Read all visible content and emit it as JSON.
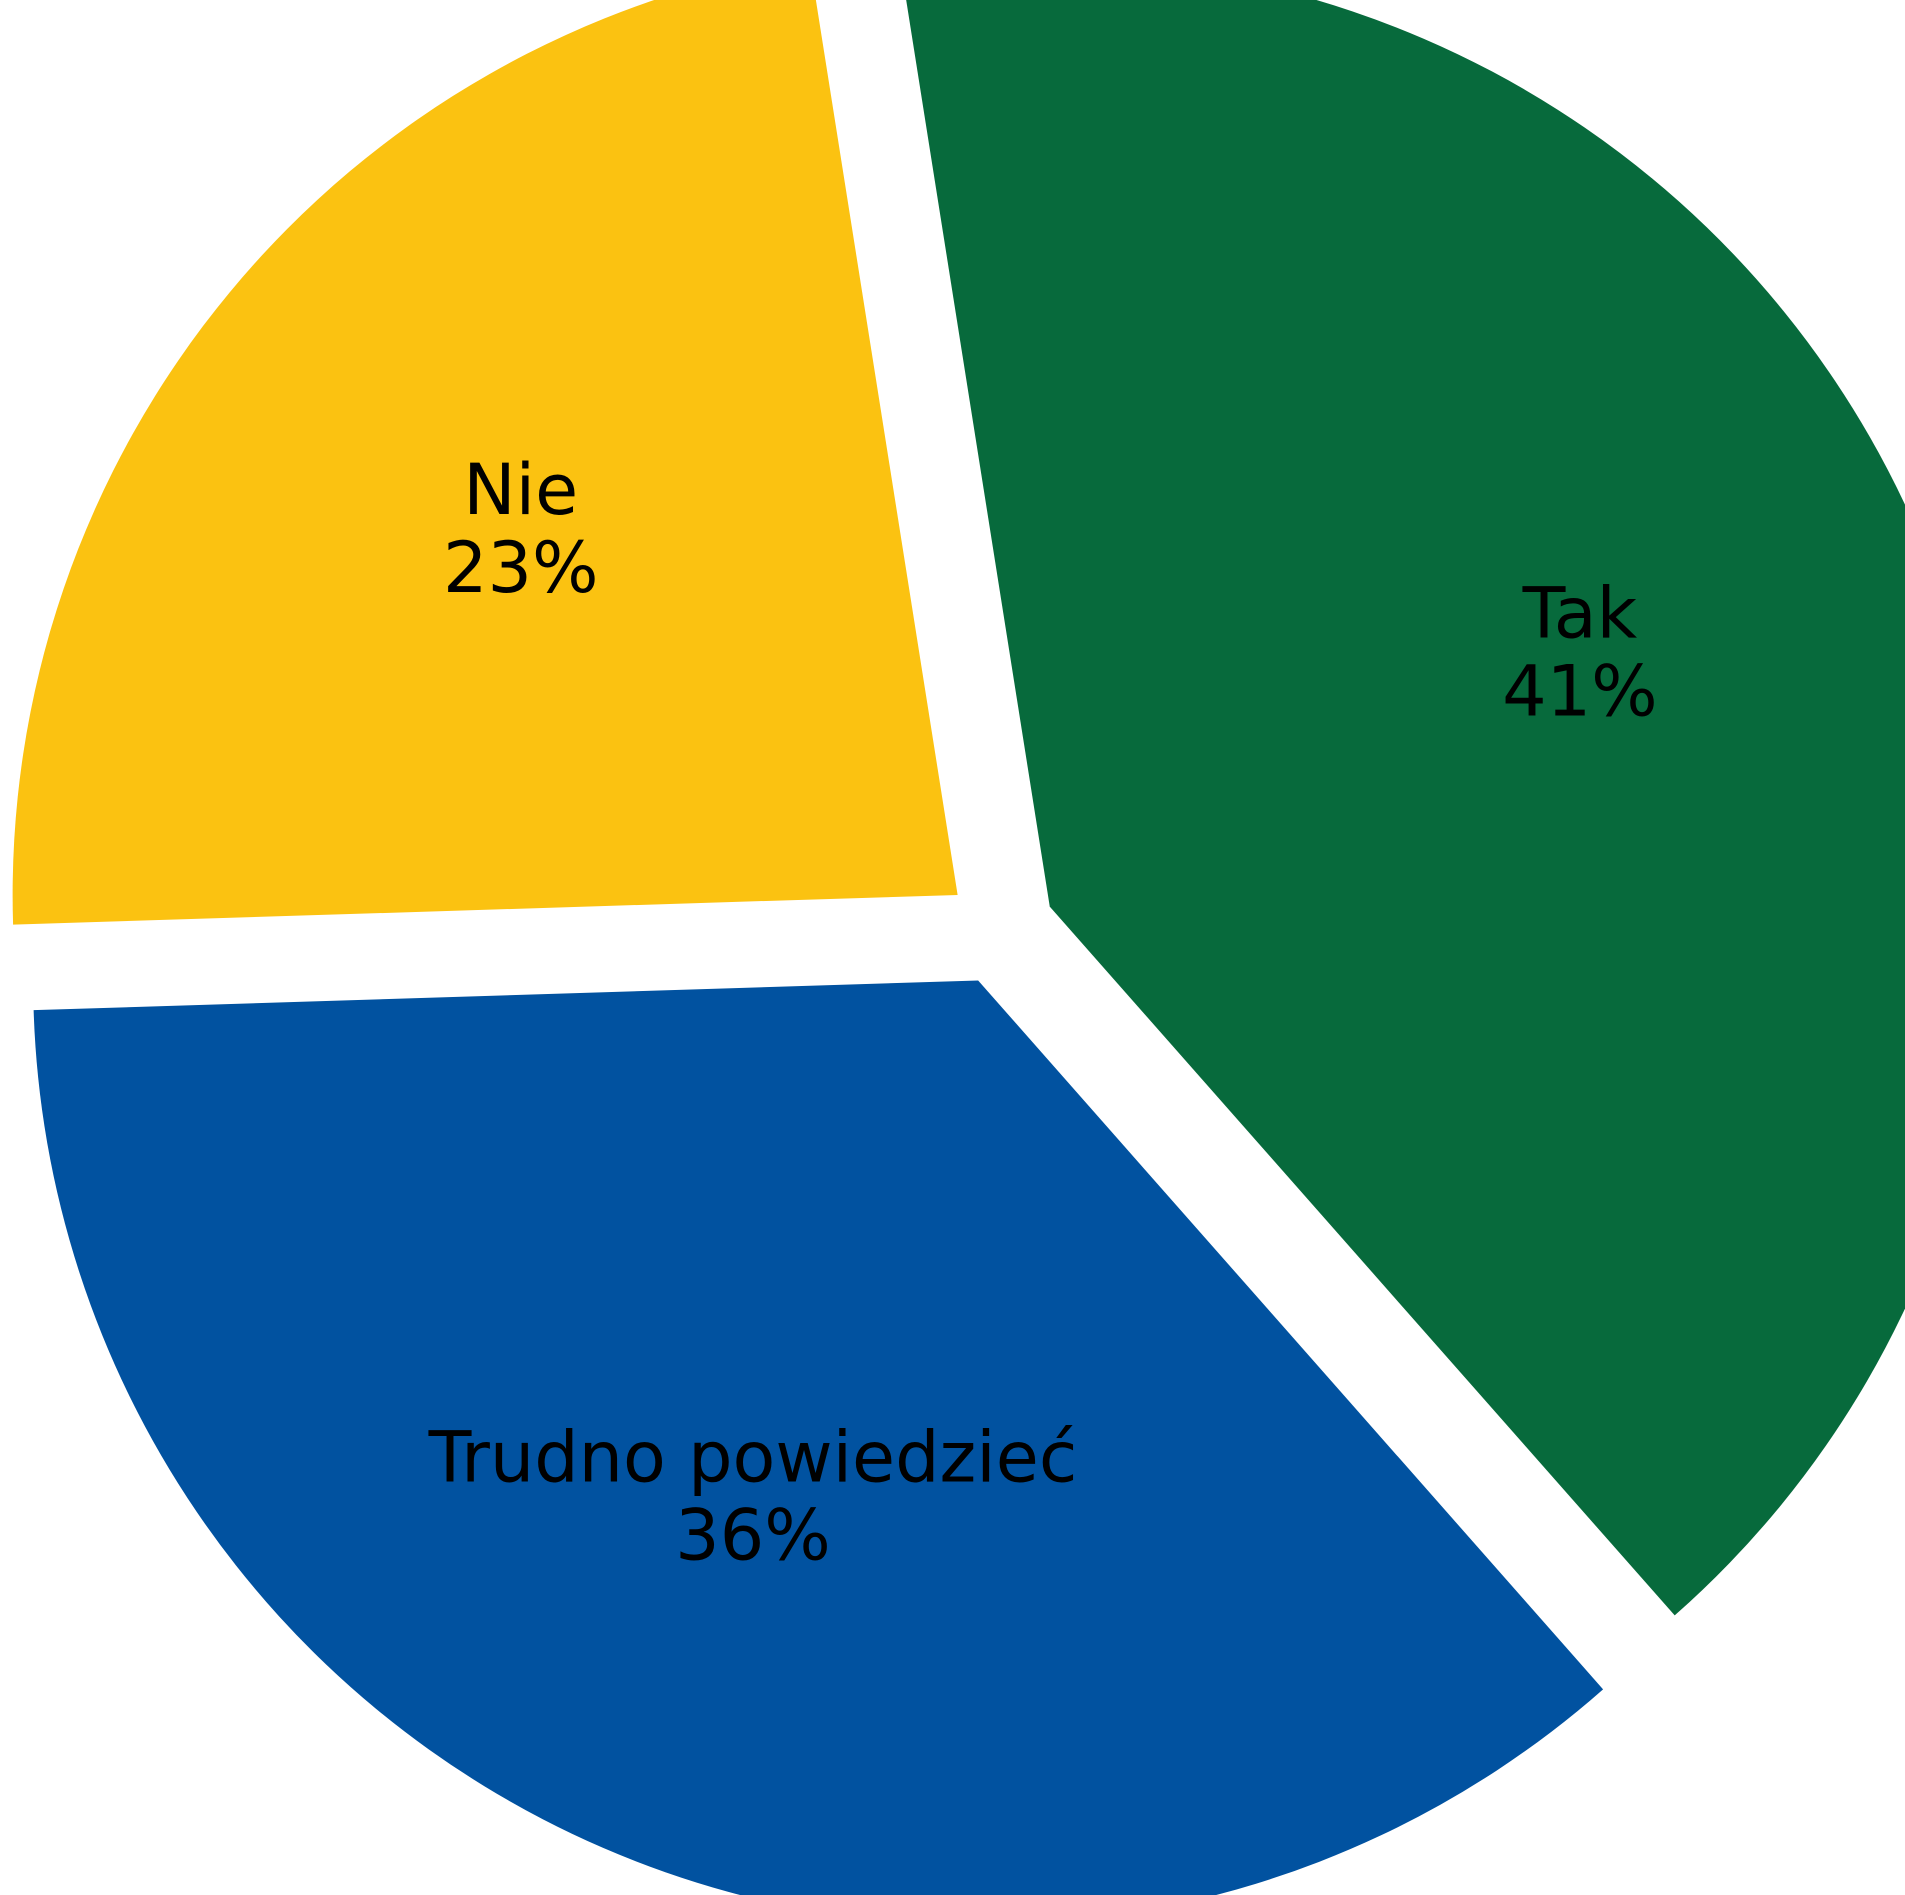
{
  "chart_data": {
    "type": "pie",
    "title": "",
    "start_angle_deg": -9,
    "direction": "clockwise",
    "exploded": true,
    "slices": [
      {
        "label": "Tak",
        "value": 41,
        "value_label": "41%",
        "color": "#076A3C"
      },
      {
        "label": "Trudno powiedzieć",
        "value": 36,
        "value_label": "36%",
        "color": "#0152A0"
      },
      {
        "label": "Nie",
        "value": 23,
        "value_label": "23%",
        "color": "#FBC211"
      }
    ]
  }
}
